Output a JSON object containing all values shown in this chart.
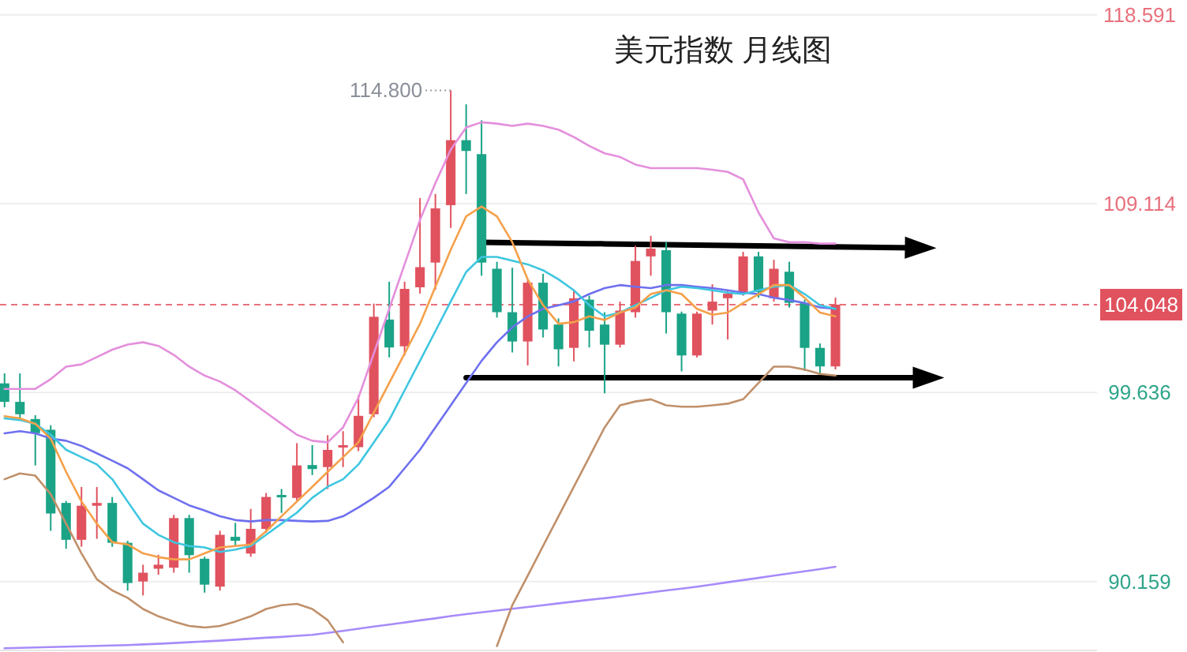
{
  "chart_data": {
    "type": "candlestick",
    "title": "美元指数 月线图",
    "categories": [
      null,
      null,
      null,
      null,
      null,
      null,
      null,
      null,
      null,
      null,
      null,
      null,
      null,
      null,
      null,
      null,
      null,
      null,
      null,
      null,
      null,
      null,
      null,
      null,
      null,
      null,
      null,
      null,
      null,
      null,
      null,
      null,
      null,
      null,
      null,
      null,
      null,
      null,
      null,
      null,
      null,
      null,
      null,
      null,
      null,
      null,
      null,
      null,
      null,
      null,
      null,
      null,
      null,
      null,
      null
    ],
    "ohlc": [
      [
        100.1,
        100.6,
        98.9,
        99.17
      ],
      [
        99.17,
        100.6,
        98.3,
        98.55
      ],
      [
        98.31,
        98.5,
        95.98,
        97.6
      ],
      [
        97.77,
        98.0,
        92.7,
        93.57
      ],
      [
        94.1,
        94.2,
        91.8,
        92.25
      ],
      [
        92.25,
        94.9,
        91.9,
        93.96
      ],
      [
        93.96,
        94.9,
        92.3,
        94.1
      ],
      [
        94.1,
        94.4,
        91.9,
        92.1
      ],
      [
        92.1,
        92.2,
        89.7,
        90.08
      ],
      [
        90.16,
        91.0,
        89.46,
        90.6
      ],
      [
        90.8,
        91.5,
        90.5,
        91.0
      ],
      [
        90.85,
        93.5,
        90.6,
        93.34
      ],
      [
        93.34,
        93.5,
        90.6,
        91.48
      ],
      [
        91.3,
        91.4,
        89.6,
        90.0
      ],
      [
        89.9,
        92.7,
        89.7,
        92.5
      ],
      [
        92.4,
        93.1,
        91.9,
        92.2
      ],
      [
        91.56,
        93.8,
        91.4,
        92.8
      ],
      [
        92.8,
        94.6,
        92.6,
        94.4
      ],
      [
        94.5,
        94.8,
        93.6,
        94.4
      ],
      [
        94.35,
        97.1,
        94.2,
        95.98
      ],
      [
        96.0,
        97.0,
        95.5,
        95.8
      ],
      [
        95.9,
        97.5,
        94.8,
        96.76
      ],
      [
        96.9,
        97.7,
        95.9,
        97.0
      ],
      [
        96.9,
        99.5,
        96.7,
        98.47
      ],
      [
        98.55,
        104.1,
        98.4,
        103.44
      ],
      [
        103.3,
        105.2,
        101.4,
        101.9
      ],
      [
        101.96,
        105.2,
        101.5,
        104.84
      ],
      [
        104.92,
        109.4,
        104.6,
        105.93
      ],
      [
        106.16,
        109.6,
        104.8,
        108.88
      ],
      [
        109.04,
        114.8,
        107.9,
        112.3
      ],
      [
        112.3,
        114.1,
        109.6,
        111.76
      ],
      [
        111.6,
        113.3,
        105.5,
        106.16
      ],
      [
        105.85,
        106.2,
        103.4,
        103.67
      ],
      [
        103.67,
        105.9,
        101.65,
        102.2
      ],
      [
        102.2,
        105.3,
        101.0,
        105.15
      ],
      [
        105.15,
        105.6,
        102.4,
        102.8
      ],
      [
        103.05,
        103.36,
        100.95,
        101.81
      ],
      [
        101.88,
        104.76,
        101.2,
        104.37
      ],
      [
        104.3,
        104.5,
        101.9,
        102.74
      ],
      [
        103.05,
        103.67,
        99.6,
        102.04
      ],
      [
        102.04,
        104.2,
        101.9,
        103.75
      ],
      [
        103.67,
        107.0,
        103.4,
        106.24
      ],
      [
        106.47,
        107.5,
        105.5,
        106.86
      ],
      [
        106.78,
        107.2,
        102.6,
        103.67
      ],
      [
        103.6,
        103.7,
        100.7,
        101.5
      ],
      [
        101.5,
        103.7,
        101.4,
        103.6
      ],
      [
        103.75,
        105.07,
        103.05,
        104.2
      ],
      [
        104.37,
        104.8,
        102.3,
        104.6
      ],
      [
        104.68,
        106.7,
        104.5,
        106.47
      ],
      [
        106.47,
        106.7,
        104.4,
        104.68
      ],
      [
        104.37,
        106.3,
        104.2,
        105.85
      ],
      [
        105.7,
        106.2,
        103.9,
        104.14
      ],
      [
        104.14,
        104.3,
        100.72,
        101.88
      ],
      [
        101.88,
        102.1,
        100.56,
        100.95
      ],
      [
        100.95,
        104.4,
        100.8,
        104.05
      ]
    ],
    "series": [
      {
        "type": "line",
        "color": "#a78bfa",
        "values": [
          86.81,
          86.83,
          86.85,
          86.87,
          86.89,
          86.91,
          86.93,
          86.95,
          86.97,
          87.0,
          87.03,
          87.07,
          87.11,
          87.15,
          87.19,
          87.24,
          87.29,
          87.34,
          87.38,
          87.43,
          87.48,
          87.58,
          87.68,
          87.79,
          87.9,
          88.0,
          88.1,
          88.21,
          88.31,
          88.42,
          88.52,
          88.61,
          88.7,
          88.79,
          88.88,
          88.97,
          89.06,
          89.15,
          89.24,
          89.32,
          89.41,
          89.51,
          89.61,
          89.71,
          89.8,
          89.9,
          90.01,
          90.12,
          90.23,
          90.34,
          90.45,
          90.56,
          90.67,
          90.78,
          90.9
        ]
      },
      {
        "type": "line",
        "color": "#e48fdc",
        "values": [
          99.82,
          99.82,
          99.82,
          100.31,
          100.94,
          101.05,
          101.42,
          101.79,
          102.05,
          102.16,
          101.98,
          101.53,
          100.94,
          100.49,
          100.19,
          99.75,
          99.19,
          98.63,
          98.07,
          97.52,
          97.22,
          97.14,
          97.89,
          99.38,
          101.6,
          103.84,
          106.07,
          108.3,
          110.15,
          111.83,
          112.94,
          113.2,
          113.13,
          113.02,
          113.13,
          113.02,
          112.83,
          112.46,
          112.01,
          111.64,
          111.46,
          111.08,
          110.9,
          110.9,
          110.9,
          110.9,
          110.82,
          110.71,
          110.34,
          108.67,
          107.37,
          107.18,
          107.18,
          107.11,
          107.11
        ]
      },
      {
        "type": "line",
        "color": "#c0906a",
        "values": [
          95.29,
          95.58,
          95.47,
          94.54,
          93.06,
          91.57,
          90.27,
          89.71,
          89.34,
          88.78,
          88.41,
          88.15,
          87.93,
          87.85,
          87.93,
          88.15,
          88.41,
          88.78,
          88.97,
          89.04,
          88.78,
          88.22,
          87.11,
          null,
          null,
          null,
          null,
          null,
          null,
          null,
          null,
          null,
          86.92,
          88.97,
          90.45,
          91.94,
          93.43,
          94.91,
          96.4,
          97.89,
          99.0,
          99.19,
          99.3,
          99.0,
          98.93,
          98.93,
          99.0,
          99.08,
          99.3,
          100.12,
          100.94,
          100.94,
          100.79,
          100.57,
          100.49
        ]
      },
      {
        "type": "line",
        "color": "#6e70ee",
        "values": [
          97.59,
          97.7,
          97.59,
          97.33,
          97.22,
          96.96,
          96.59,
          96.22,
          95.84,
          95.29,
          94.73,
          94.36,
          93.98,
          93.72,
          93.43,
          93.24,
          93.17,
          93.24,
          93.24,
          93.2,
          93.17,
          93.2,
          93.43,
          93.87,
          94.36,
          94.91,
          95.84,
          96.77,
          97.89,
          99.0,
          100.12,
          101.23,
          102.16,
          102.91,
          103.46,
          103.84,
          104.02,
          104.21,
          104.58,
          104.88,
          105.03,
          104.95,
          104.88,
          105.03,
          105.03,
          104.95,
          104.88,
          104.77,
          104.65,
          104.58,
          104.39,
          104.28,
          104.13,
          103.91,
          103.84
        ]
      },
      {
        "type": "line",
        "color": "#3ec6e0",
        "values": [
          98.34,
          98.26,
          98.07,
          97.52,
          96.77,
          96.4,
          96.03,
          95.29,
          94.17,
          93.06,
          92.5,
          92.13,
          91.94,
          91.87,
          91.64,
          91.76,
          91.94,
          92.5,
          93.06,
          93.61,
          94.36,
          94.91,
          95.29,
          96.03,
          97.14,
          98.26,
          99.75,
          101.23,
          102.72,
          104.21,
          105.69,
          106.44,
          106.44,
          106.25,
          106.07,
          105.77,
          105.32,
          104.77,
          104.02,
          103.46,
          103.65,
          104.02,
          104.39,
          104.77,
          104.95,
          104.88,
          104.77,
          104.65,
          104.58,
          104.77,
          104.95,
          105.03,
          104.58,
          104.02,
          103.84
        ]
      },
      {
        "type": "line",
        "color": "#f5a04a",
        "values": [
          98.45,
          98.34,
          98.07,
          97.33,
          95.66,
          94.17,
          93.06,
          92.13,
          92.02,
          91.57,
          91.38,
          91.27,
          91.27,
          91.57,
          91.87,
          91.94,
          92.02,
          92.68,
          93.43,
          94.17,
          94.91,
          95.66,
          96.4,
          97.14,
          98.63,
          100.12,
          101.6,
          103.09,
          104.95,
          106.81,
          108.48,
          108.97,
          108.48,
          107.18,
          105.32,
          104.02,
          103.09,
          103.17,
          103.46,
          103.28,
          103.65,
          103.91,
          104.58,
          104.77,
          104.58,
          103.84,
          103.54,
          103.65,
          104.13,
          104.58,
          105.03,
          105.03,
          104.39,
          103.65,
          103.46
        ]
      },
      {
        "type": "line",
        "color": "#000000",
        "values": [
          null,
          null,
          null,
          null,
          null,
          null,
          null,
          null,
          null,
          null,
          null,
          null,
          null,
          null,
          null,
          null,
          null,
          null,
          null,
          null,
          null,
          null,
          null,
          null,
          null,
          null,
          null,
          null,
          null,
          null,
          null,
          107.18,
          107.17,
          107.16,
          107.15,
          107.14,
          107.13,
          107.12,
          107.11,
          107.1,
          107.09,
          107.08,
          107.07,
          107.06,
          107.05,
          107.04,
          107.03,
          107.02,
          107.01,
          107.0,
          106.99,
          106.98,
          106.97,
          106.96,
          106.95
        ]
      },
      {
        "type": "line",
        "color": "#000000",
        "values": [
          null,
          null,
          null,
          null,
          null,
          null,
          null,
          null,
          null,
          null,
          null,
          null,
          null,
          null,
          null,
          null,
          null,
          null,
          null,
          null,
          null,
          null,
          null,
          null,
          null,
          null,
          null,
          null,
          null,
          null,
          100.38,
          100.38,
          100.38,
          100.38,
          100.38,
          100.38,
          100.38,
          100.38,
          100.38,
          100.38,
          100.38,
          100.38,
          100.38,
          100.38,
          100.38,
          100.38,
          100.38,
          100.38,
          100.38,
          100.38,
          100.38,
          100.38,
          100.38,
          100.38,
          100.38
        ]
      }
    ],
    "ylim": [
      86.7,
      118.7
    ],
    "yticks": [
      118.591,
      109.114,
      99.636,
      90.159
    ],
    "ref_lines": [
      {
        "axis": "y",
        "value": 104.048,
        "label": "104.048",
        "color": "#e8717d",
        "line_style": "dashed"
      }
    ],
    "annotations": [
      "114.800"
    ],
    "grid": "y",
    "tick_labels": "y"
  }
}
